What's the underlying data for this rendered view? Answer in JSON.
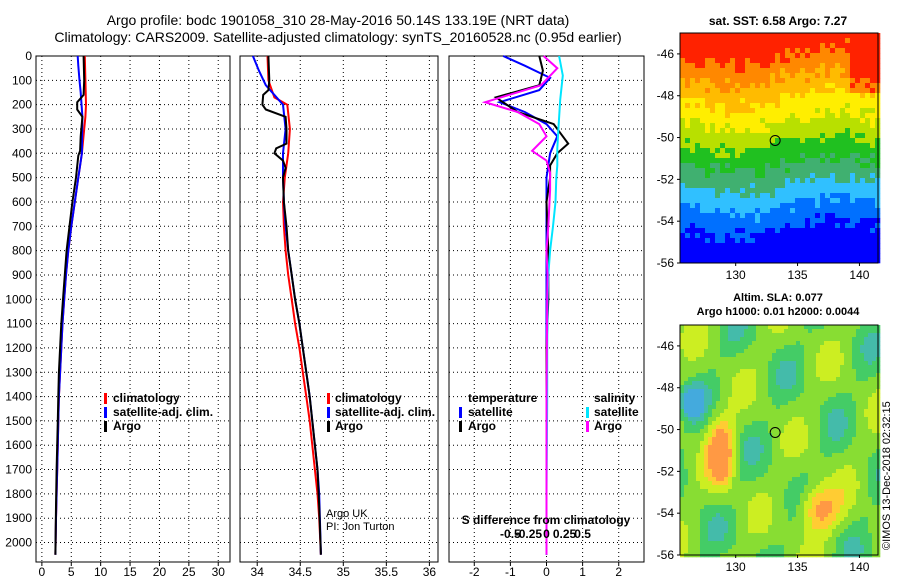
{
  "titles": {
    "line1": "Argo profile: bodc 1901058_310 28-May-2016 50.14S 133.19E (NRT data)",
    "line2": "Climatology: CARS2009. Satellite-adjusted climatology: synTS_20160528.nc (0.95d earlier)"
  },
  "depth_ticks": [
    "0",
    "100",
    "200",
    "300",
    "400",
    "500",
    "600",
    "700",
    "800",
    "900",
    "1000",
    "1100",
    "1200",
    "1300",
    "1400",
    "1500",
    "1600",
    "1700",
    "1800",
    "1900",
    "2000"
  ],
  "panels": {
    "temperature": {
      "xlabel": "temperature (deg C)",
      "xticks": [
        "0",
        "5",
        "10",
        "15",
        "20",
        "25",
        "30"
      ],
      "legend": [
        "climatology",
        "satellite-adj. clim.",
        "Argo"
      ]
    },
    "salinity": {
      "xlabel": "salinity",
      "xticks": [
        "34",
        "34.5",
        "35",
        "35.5",
        "36"
      ],
      "legend": [
        "climatology",
        "satellite-adj. clim.",
        "Argo"
      ],
      "note1": "Argo UK",
      "note2": "PI: Jon Turton"
    },
    "difference": {
      "xlabel": "T difference from climatology",
      "xticks": [
        "-2",
        "-1",
        "0",
        "1",
        "2"
      ],
      "stitle": "S difference from climatology",
      "sticks": [
        "-0.5",
        "-0.25",
        "0",
        "0.25",
        "0.5"
      ],
      "legend_left_title": "temperature",
      "legend_left": [
        "satellite",
        "Argo"
      ],
      "legend_right_title": "salinity",
      "legend_right": [
        "satellite",
        "Argo"
      ]
    }
  },
  "maps": {
    "sst_title": "sat. SST: 6.58 Argo: 7.27",
    "sla_title1": "Altim. SLA: 0.077",
    "sla_title2": "Argo h1000: 0.01 h2000: 0.0044",
    "lat_ticks": [
      "-46",
      "-48",
      "-50",
      "-52",
      "-54",
      "-56"
    ],
    "lon_ticks": [
      "130",
      "135",
      "140"
    ],
    "float_lon": 133.19,
    "float_lat": -50.14
  },
  "footer": "©IMOS 13-Dec-2018 02:32:15",
  "chart_data": [
    {
      "type": "line",
      "name": "temperature",
      "xlim": [
        -1,
        32
      ],
      "ylim": [
        2080,
        0
      ],
      "series": [
        {
          "name": "climatology",
          "color": "#ff0000",
          "x": [
            7.3,
            7.4,
            7.5,
            7.4,
            7.2,
            6.8,
            6.2,
            5.6,
            5.0,
            4.5,
            4.1,
            3.8,
            3.5,
            3.3,
            3.1,
            2.9,
            2.8,
            2.7,
            2.6,
            2.5,
            2.4,
            2.3
          ],
          "y": [
            0,
            100,
            200,
            250,
            300,
            400,
            500,
            600,
            700,
            800,
            900,
            1000,
            1100,
            1200,
            1300,
            1400,
            1500,
            1600,
            1700,
            1800,
            1900,
            2050
          ]
        },
        {
          "name": "satellite-adj. clim.",
          "color": "#0000ff",
          "x": [
            6.1,
            6.2,
            6.4,
            6.6,
            6.9,
            6.8,
            6.2,
            5.6,
            5.0,
            4.5,
            4.1,
            3.8,
            3.5,
            3.3,
            3.1,
            2.9,
            2.8,
            2.7,
            2.6,
            2.5,
            2.4,
            2.3
          ],
          "y": [
            0,
            40,
            100,
            150,
            250,
            400,
            500,
            600,
            700,
            800,
            900,
            1000,
            1100,
            1200,
            1300,
            1400,
            1500,
            1600,
            1700,
            1800,
            1900,
            2050
          ]
        },
        {
          "name": "Argo",
          "color": "#000000",
          "x": [
            7.1,
            7.2,
            7.1,
            6.0,
            6.0,
            6.9,
            6.6,
            6.5,
            6.2,
            5.8,
            5.2,
            4.7,
            4.2,
            3.9,
            3.6,
            3.3,
            3.1,
            2.9,
            2.8,
            2.7,
            2.6,
            2.5,
            2.4,
            2.3
          ],
          "y": [
            0,
            100,
            160,
            190,
            220,
            250,
            330,
            390,
            410,
            500,
            600,
            700,
            800,
            900,
            1000,
            1100,
            1200,
            1300,
            1400,
            1500,
            1600,
            1700,
            1850,
            2050
          ]
        }
      ]
    },
    {
      "type": "line",
      "name": "salinity",
      "xlim": [
        33.8,
        36.1
      ],
      "ylim": [
        2080,
        0
      ],
      "series": [
        {
          "name": "climatology",
          "color": "#ff0000",
          "x": [
            34.12,
            34.13,
            34.2,
            34.35,
            34.38,
            34.36,
            34.32,
            34.3,
            34.31,
            34.33,
            34.36,
            34.4,
            34.44,
            34.49,
            34.53,
            34.57,
            34.61,
            34.64,
            34.67,
            34.7,
            34.72,
            34.74
          ],
          "y": [
            0,
            100,
            170,
            200,
            300,
            400,
            500,
            600,
            700,
            800,
            900,
            1000,
            1100,
            1200,
            1300,
            1400,
            1500,
            1600,
            1700,
            1800,
            1900,
            2050
          ]
        },
        {
          "name": "satellite-adj. clim.",
          "color": "#0000ff",
          "x": [
            33.95,
            34.02,
            34.1,
            34.3,
            34.33,
            34.3,
            34.3,
            34.31,
            34.33,
            34.36,
            34.4,
            34.44,
            34.49,
            34.53,
            34.57,
            34.61,
            34.64,
            34.67,
            34.7,
            34.72,
            34.74
          ],
          "y": [
            0,
            60,
            120,
            200,
            300,
            400,
            500,
            600,
            700,
            800,
            900,
            1000,
            1100,
            1200,
            1300,
            1400,
            1500,
            1600,
            1700,
            1800,
            2050
          ]
        },
        {
          "name": "Argo",
          "color": "#000000",
          "x": [
            34.13,
            34.14,
            34.13,
            34.07,
            34.06,
            34.1,
            34.33,
            34.34,
            34.34,
            34.22,
            34.2,
            34.3,
            34.33,
            34.3,
            34.31,
            34.34,
            34.36,
            34.4,
            34.44,
            34.49,
            34.53,
            34.57,
            34.61,
            34.64,
            34.67,
            34.7,
            34.72,
            34.74
          ],
          "y": [
            0,
            100,
            140,
            160,
            200,
            220,
            250,
            300,
            360,
            380,
            400,
            430,
            460,
            500,
            600,
            700,
            800,
            900,
            1000,
            1100,
            1200,
            1300,
            1400,
            1500,
            1600,
            1700,
            1850,
            2050
          ]
        }
      ]
    },
    {
      "type": "line",
      "name": "difference",
      "xlim": [
        -2.7,
        2.7
      ],
      "ylim": [
        2080,
        0
      ],
      "series": [
        {
          "name": "temperature satellite",
          "color": "#0000ff",
          "x": [
            -1.2,
            -0.6,
            0.1,
            -0.2,
            -1.3,
            -0.6,
            0,
            0.3,
            0.1,
            0,
            0,
            0,
            0,
            0,
            0,
            0,
            0
          ],
          "y": [
            0,
            40,
            90,
            140,
            190,
            230,
            280,
            330,
            400,
            500,
            600,
            800,
            1000,
            1200,
            1400,
            1700,
            2050
          ]
        },
        {
          "name": "temperature Argo",
          "color": "#000000",
          "x": [
            -0.2,
            -0.1,
            -0.2,
            -1.4,
            -0.8,
            0.2,
            0.4,
            0.6,
            0.3,
            0.1,
            0.1,
            0,
            0.05,
            0.05,
            0,
            0,
            0,
            0,
            0
          ],
          "y": [
            0,
            60,
            120,
            170,
            230,
            280,
            320,
            360,
            400,
            450,
            500,
            600,
            800,
            1000,
            1200,
            1400,
            1600,
            1800,
            2050
          ]
        },
        {
          "name": "salinity satellite",
          "color": "#00e5ff",
          "x": [
            0.35,
            0.45,
            0.38,
            0.33,
            0.3,
            0.3,
            0.27,
            0.25,
            0.18,
            0.1,
            0.05,
            0.03,
            0.02,
            0.02,
            0.01,
            0,
            0
          ],
          "y": [
            0,
            80,
            180,
            300,
            380,
            450,
            500,
            600,
            700,
            800,
            900,
            1000,
            1200,
            1400,
            1600,
            1800,
            2050
          ]
        },
        {
          "name": "salinity Argo",
          "color": "#ff00ff",
          "x": [
            -0.08,
            0.3,
            -0.15,
            -1.7,
            -0.8,
            -0.2,
            0,
            -0.4,
            0,
            0.1,
            0.1,
            0.05,
            0,
            0.03,
            0.02,
            0.01,
            0,
            0
          ],
          "y": [
            0,
            50,
            120,
            190,
            230,
            280,
            330,
            390,
            430,
            480,
            550,
            700,
            800,
            900,
            1000,
            1200,
            1400,
            2050
          ]
        }
      ]
    }
  ]
}
